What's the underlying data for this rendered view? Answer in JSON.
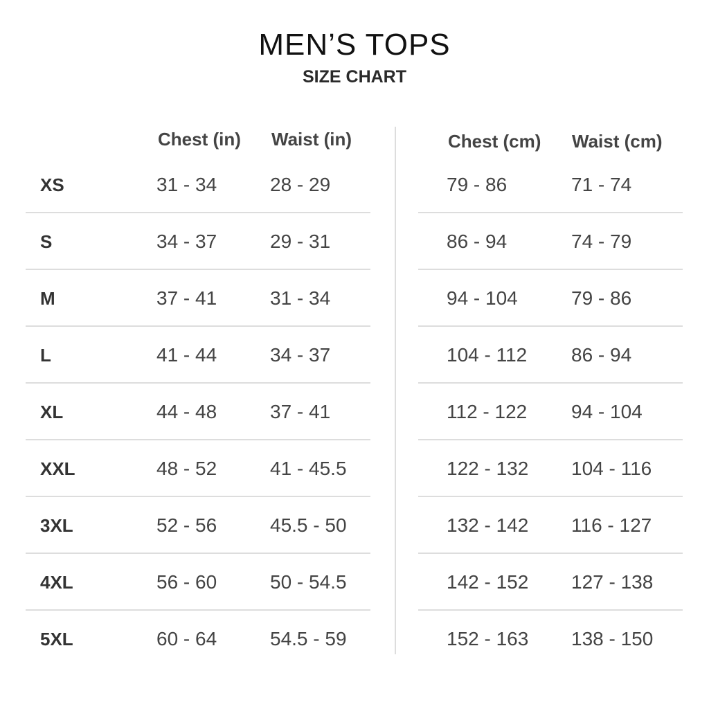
{
  "title": "MEN’S TOPS",
  "subtitle": "SIZE CHART",
  "headers": {
    "chest_in": "Chest (in)",
    "waist_in": "Waist (in)",
    "chest_cm": "Chest (cm)",
    "waist_cm": "Waist (cm)"
  },
  "rows": [
    {
      "size": "XS",
      "chest_in": "31 - 34",
      "waist_in": "28 - 29",
      "chest_cm": "79 - 86",
      "waist_cm": "71 - 74"
    },
    {
      "size": "S",
      "chest_in": "34 - 37",
      "waist_in": "29 - 31",
      "chest_cm": "86 - 94",
      "waist_cm": "74 - 79"
    },
    {
      "size": "M",
      "chest_in": "37 - 41",
      "waist_in": "31 - 34",
      "chest_cm": "94 - 104",
      "waist_cm": "79 - 86"
    },
    {
      "size": "L",
      "chest_in": "41 - 44",
      "waist_in": "34 - 37",
      "chest_cm": "104 - 112",
      "waist_cm": "86 - 94"
    },
    {
      "size": "XL",
      "chest_in": "44 - 48",
      "waist_in": "37 - 41",
      "chest_cm": "112 - 122",
      "waist_cm": "94 - 104"
    },
    {
      "size": "XXL",
      "chest_in": "48 - 52",
      "waist_in": "41 - 45.5",
      "chest_cm": "122 - 132",
      "waist_cm": "104 - 116"
    },
    {
      "size": "3XL",
      "chest_in": "52 - 56",
      "waist_in": "45.5 - 50",
      "chest_cm": "132 - 142",
      "waist_cm": "116 - 127"
    },
    {
      "size": "4XL",
      "chest_in": "56 - 60",
      "waist_in": "50 - 54.5",
      "chest_cm": "142 - 152",
      "waist_cm": "127 - 138"
    },
    {
      "size": "5XL",
      "chest_in": "60 - 64",
      "waist_in": "54.5 - 59",
      "chest_cm": "152 - 163",
      "waist_cm": "138 - 150"
    }
  ]
}
